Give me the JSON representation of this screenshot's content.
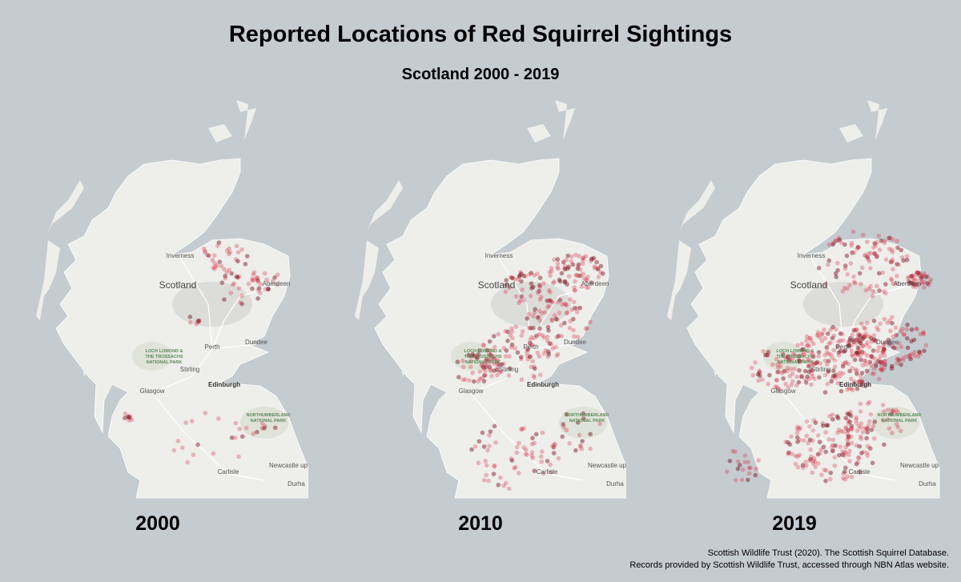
{
  "header": {
    "title": "Reported Locations of Red Squirrel Sightings",
    "subtitle": "Scotland 2000 - 2019"
  },
  "panels": [
    {
      "label": "2000"
    },
    {
      "label": "2010"
    },
    {
      "label": "2019"
    }
  ],
  "map_labels": [
    {
      "lines": [
        "Inverness"
      ]
    },
    {
      "lines": [
        "Scotland"
      ]
    },
    {
      "lines": [
        "Aberdeen"
      ]
    },
    {
      "lines": [
        "Perth"
      ]
    },
    {
      "lines": [
        "Dundee"
      ]
    },
    {
      "lines": [
        "LOCH LOMOND &",
        "THE TROSSACHS",
        "NATIONAL PARK"
      ]
    },
    {
      "lines": [
        "Stirling"
      ]
    },
    {
      "lines": [
        "Glasgow"
      ]
    },
    {
      "lines": [
        "Edinburgh"
      ]
    },
    {
      "lines": [
        "NORTHUMBERLAND",
        "NATIONAL PARK"
      ]
    },
    {
      "lines": [
        "Newcastle up"
      ]
    },
    {
      "lines": [
        "Carlisle"
      ]
    },
    {
      "lines": [
        "Durha"
      ]
    }
  ],
  "credits": [
    "Scottish Wildlife Trust (2020). The Scottish Squirrel Database.",
    "Records provided by Scottish Wildlife Trust, accessed through NBN Atlas website."
  ]
}
